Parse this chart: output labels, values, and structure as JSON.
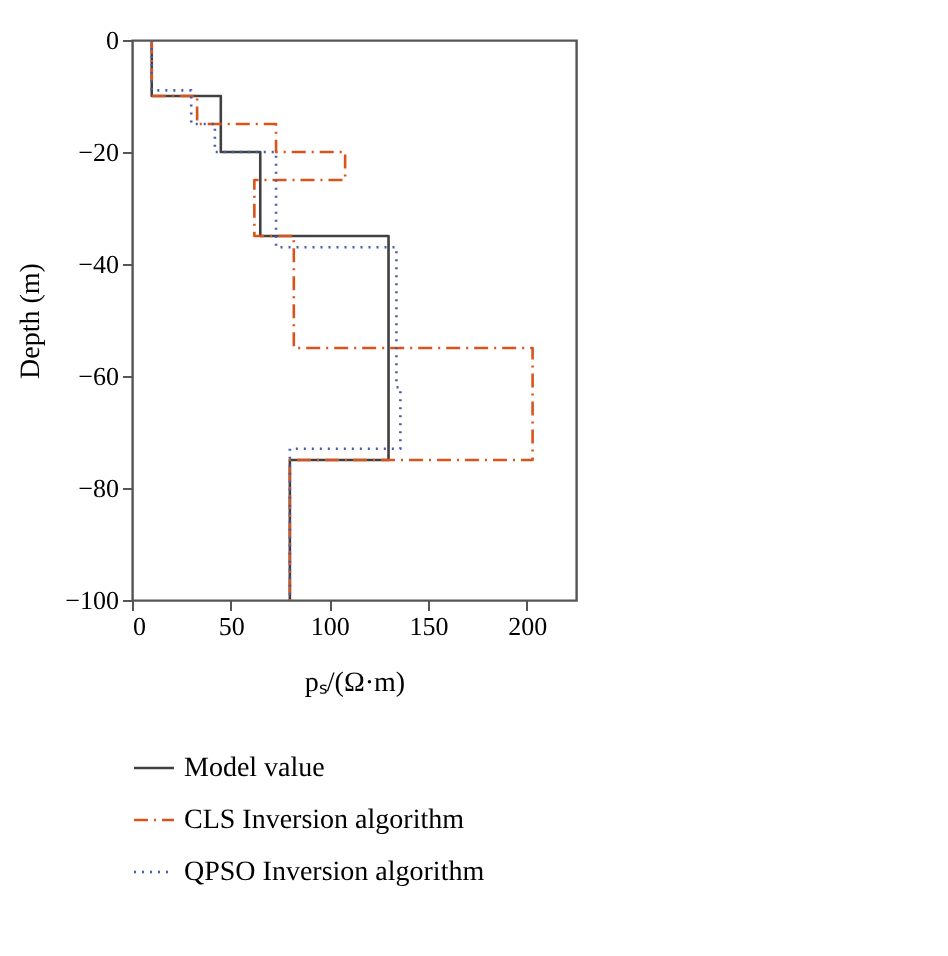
{
  "chart_data": {
    "type": "step",
    "xlabel": "pₛ/(Ω·m)",
    "ylabel": "Depth (m)",
    "xlim": [
      0,
      225
    ],
    "ylim": [
      -100,
      0
    ],
    "xticks": [
      0,
      50,
      100,
      150,
      200
    ],
    "yticks": [
      -100,
      -80,
      -60,
      -40,
      -20,
      0
    ],
    "grid": false,
    "legend": "bottom",
    "marker": "none",
    "series": [
      {
        "name": "Model value",
        "color": "#404040",
        "line_style": "solid",
        "x": [
          10,
          10,
          45,
          45,
          65,
          65,
          130,
          130,
          80,
          80
        ],
        "values": [
          0,
          -10,
          -10,
          -20,
          -20,
          -35,
          -35,
          -75,
          -75,
          -100
        ]
      },
      {
        "name": "CLS Inversion algorithm",
        "color": "#d9541a",
        "line_style": "dashdot",
        "x": [
          10,
          10,
          33,
          33,
          73,
          73,
          107,
          108,
          62,
          62,
          82,
          82,
          203,
          203,
          80,
          80
        ],
        "values": [
          0,
          -10,
          -10,
          -15,
          -15,
          -20,
          -20,
          -25,
          -25,
          -35,
          -35,
          -55,
          -55,
          -75,
          -75,
          -100
        ]
      },
      {
        "name": "QPSO Inversion algorithm",
        "color": "#4a5aa8",
        "line_style": "dotted",
        "x": [
          10,
          10,
          30,
          30,
          42,
          42,
          73,
          73,
          134,
          134,
          136,
          136,
          80,
          80
        ],
        "values": [
          0,
          -9,
          -9,
          -15,
          -15,
          -20,
          -20,
          -37,
          -37,
          -62,
          -62,
          -73,
          -73,
          -100
        ]
      }
    ]
  }
}
